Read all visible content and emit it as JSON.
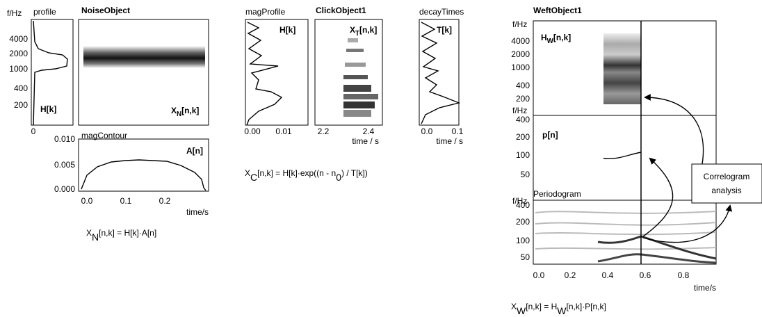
{
  "noise": {
    "title": "NoiseObject",
    "freq_unit": "f/Hz",
    "profile_label": "profile",
    "freq_ticks": [
      "4000",
      "2000",
      "1000",
      "400",
      "200"
    ],
    "profile_xticks": [
      "0"
    ],
    "profile_tag": "H[k]",
    "spec_tag": [
      "X",
      "N",
      "[n,k]"
    ],
    "contour_label": "magContour",
    "contour_yticks": [
      "0.010",
      "0.005",
      "0.000"
    ],
    "contour_xticks": [
      "0.0",
      "0.1",
      "0.2"
    ],
    "contour_tag": "A[n]",
    "time_label": "time/s",
    "equation": [
      "X",
      "N",
      "[n,k] = H[k]·A[n]"
    ]
  },
  "click": {
    "title": "ClickObject1",
    "profile_label": "magProfile",
    "profile_tag": "H[k]",
    "profile_xticks": [
      "0.00",
      "0.01"
    ],
    "spec_tag": [
      "X",
      "T",
      "[n,k]"
    ],
    "spec_xticks": [
      "2.2",
      "2.4"
    ],
    "decay_label": "decayTimes",
    "decay_tag": "T[k]",
    "decay_xticks": [
      "0.0",
      "0.1"
    ],
    "time_label": "time / s",
    "equation": [
      "X",
      "C",
      "[n,k] = H[k]·exp((n - n",
      "0",
      ") / T[k])"
    ]
  },
  "weft": {
    "title": "WeftObject1",
    "freq_unit": "f/Hz",
    "env_ticks": [
      "4000",
      "2000",
      "1000",
      "400",
      "200"
    ],
    "env_tag": [
      "H",
      "W",
      "[n,k]"
    ],
    "pitch_ticks": [
      "400",
      "200",
      "100",
      "50"
    ],
    "pitch_tag": "p[n]",
    "periodogram_label": "Periodogram",
    "periodogram_ticks": [
      "400",
      "200",
      "100",
      "50"
    ],
    "time_ticks": [
      "0.0",
      "0.2",
      "0.4",
      "0.6",
      "0.8"
    ],
    "time_label": "time/s",
    "box": [
      "Correlogram",
      "analysis"
    ],
    "equation": [
      "X",
      "W",
      "[n,k] = H",
      "W",
      "[n,k]·P[n,k]"
    ]
  }
}
